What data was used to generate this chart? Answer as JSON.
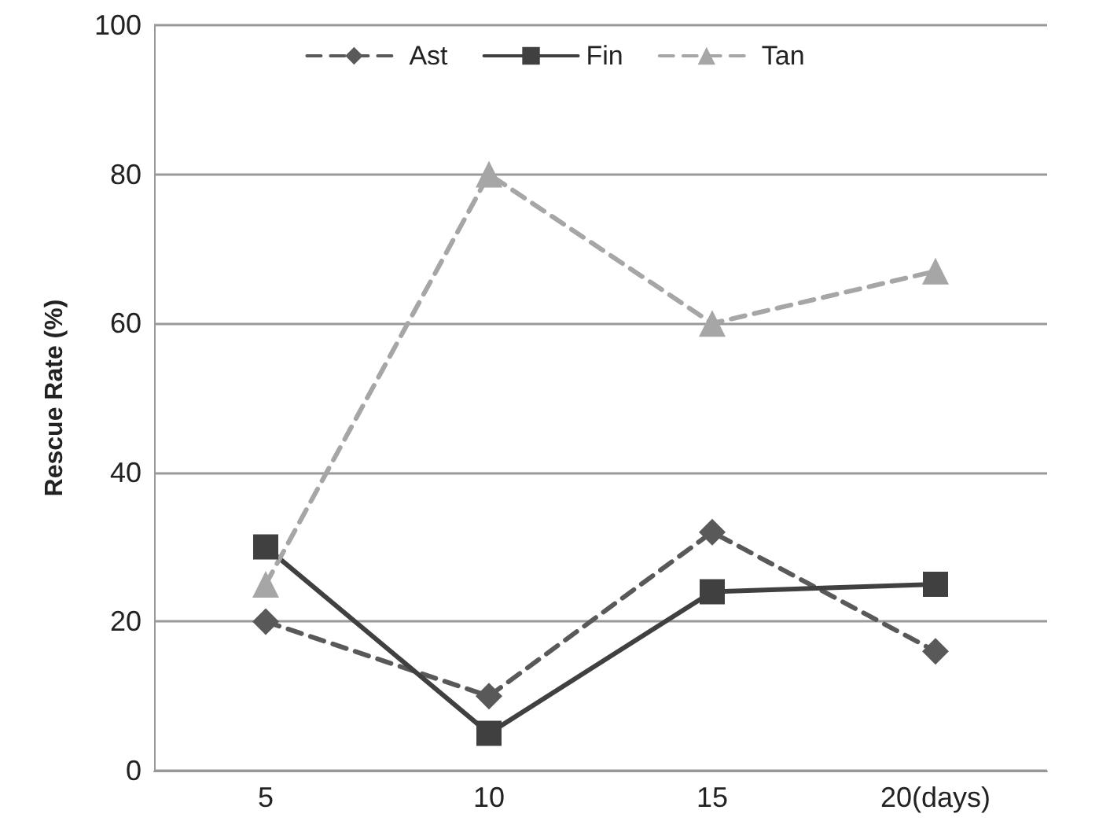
{
  "chart_data": {
    "type": "line",
    "ylabel": "Rescue Rate (%)",
    "categories": [
      "5",
      "10",
      "15",
      "20(days)"
    ],
    "series": [
      {
        "name": "Ast",
        "color": "#595959",
        "values": [
          20,
          10,
          32,
          16
        ],
        "marker": "diamond",
        "line_style": "dashed"
      },
      {
        "name": "Fin",
        "color": "#404040",
        "values": [
          30,
          5,
          24,
          25
        ],
        "marker": "square",
        "line_style": "solid"
      },
      {
        "name": "Tan",
        "color": "#a6a6a6",
        "values": [
          25,
          80,
          60,
          67
        ],
        "marker": "triangle",
        "line_style": "dashed"
      }
    ],
    "ylim": [
      0,
      100
    ],
    "yticks": [
      0,
      20,
      40,
      60,
      80,
      100
    ],
    "grid": "y",
    "legend": "top"
  }
}
